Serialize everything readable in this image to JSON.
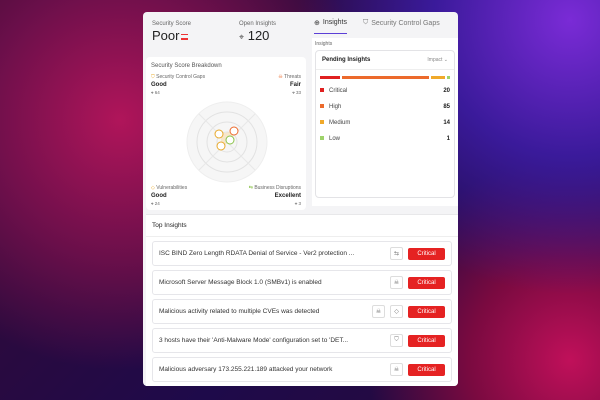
{
  "score": {
    "label": "Security Score",
    "value": "Poor"
  },
  "open": {
    "label": "Open Insights",
    "value": "120"
  },
  "breakdown": {
    "title": "Security Score Breakdown",
    "quadrants": [
      {
        "name": "Security Control Gaps",
        "rating": "Good",
        "count": "64",
        "icon": "shield-icon"
      },
      {
        "name": "Threats",
        "rating": "Fair",
        "count": "33",
        "icon": "skull-icon"
      },
      {
        "name": "Vulnerabilities",
        "rating": "Good",
        "count": "24",
        "icon": "diamond-alert-icon"
      },
      {
        "name": "Business Disruptions",
        "rating": "Excellent",
        "count": "3",
        "icon": "disruption-icon"
      }
    ]
  },
  "tabs": [
    {
      "label": "Insights",
      "active": true
    },
    {
      "label": "Security Control Gaps",
      "active": false
    }
  ],
  "insights": {
    "section": "Insights",
    "title": "Pending Insights",
    "sort": "Impact",
    "levels": [
      {
        "label": "Critical",
        "count": 20,
        "color": "#e02020"
      },
      {
        "label": "High",
        "count": 85,
        "color": "#ec6a2c"
      },
      {
        "label": "Medium",
        "count": 14,
        "color": "#f0a92a"
      },
      {
        "label": "Low",
        "count": 1,
        "color": "#9ed36a"
      }
    ]
  },
  "top": {
    "title": "Top Insights",
    "items": [
      {
        "text": "ISC BIND Zero Length RDATA Denial of Service - Ver2 protection ...",
        "icons": [
          "disruption-icon"
        ],
        "severity": "Critical"
      },
      {
        "text": "Microsoft Server Message Block 1.0 (SMBv1) is enabled",
        "icons": [
          "skull-icon"
        ],
        "severity": "Critical"
      },
      {
        "text": "Malicious activity related to multiple CVEs was detected",
        "icons": [
          "skull-icon",
          "diamond-alert-icon"
        ],
        "severity": "Critical"
      },
      {
        "text": "3 hosts have their 'Anti-Malware Mode' configuration set to 'DET...",
        "icons": [
          "shield-icon"
        ],
        "severity": "Critical"
      },
      {
        "text": "Malicious adversary 173.255.221.189 attacked your network",
        "icons": [
          "skull-icon"
        ],
        "severity": "Critical"
      }
    ]
  }
}
